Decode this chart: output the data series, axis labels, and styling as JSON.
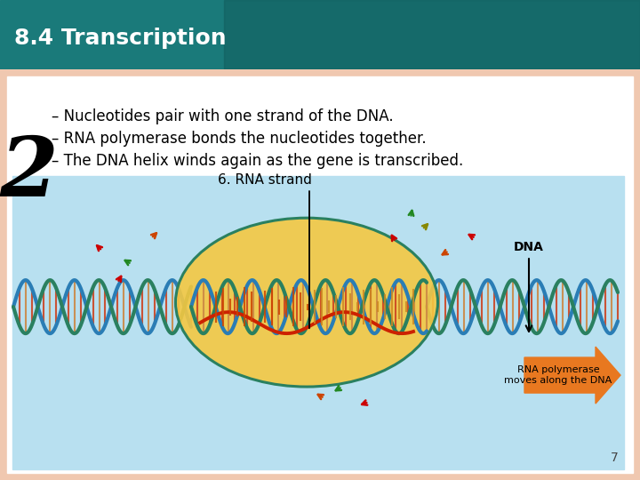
{
  "title": "8.4 Transcription",
  "title_color": "#ffffff",
  "title_bg_color": "#1a7a7a",
  "title_fontsize": 18,
  "slide_bg_color": "#f0c8b0",
  "content_bg_color": "#ffffff",
  "diagram_bg_color": "#b8e0f0",
  "bullet1": "– Nucleotides pair with one strand of the DNA.",
  "bullet2": "– RNA polymerase bonds the nucleotides together.",
  "bullet3": "– The DNA helix winds again as the gene is transcribed.",
  "bullet_fontsize": 12,
  "label_rna": "6. RNA strand",
  "label_dna": "DNA",
  "label_polymerase": "RNA polymerase\nmoves along the DNA",
  "arrow_color": "#e87820",
  "ellipse_color": "#f5c842",
  "dna_color1": "#2a7db5",
  "dna_color2": "#2a8060",
  "rna_color": "#cc2200",
  "number_color": "#000000",
  "page_number": "7"
}
